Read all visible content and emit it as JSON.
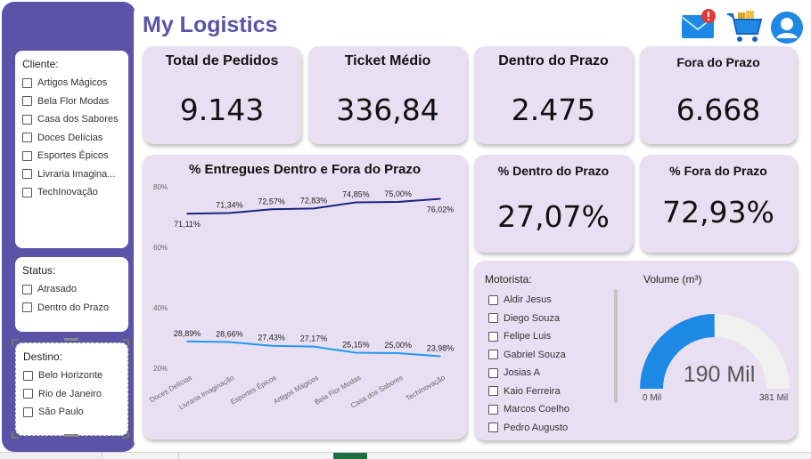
{
  "app": {
    "title": "My Logistics"
  },
  "header_icons": [
    "mail-alert-icon",
    "shopping-cart-icon",
    "user-avatar-icon"
  ],
  "colors": {
    "brand": "#5c52a8",
    "card": "#e8e0f2",
    "line_in": "#1a237e",
    "line_out": "#2196f3",
    "gauge_fill": "#1e88e5",
    "gauge_rest": "#f0f0f0"
  },
  "filters": {
    "cliente": {
      "title": "Cliente:",
      "items": [
        "Artigos Mágicos",
        "Bela Flor Modas",
        "Casa dos Sabores",
        "Doces Delícias",
        "Esportes Épicos",
        "Livraria Imagina...",
        "TechInovação"
      ]
    },
    "status": {
      "title": "Status:",
      "items": [
        "Atrasado",
        "Dentro do Prazo"
      ]
    },
    "destino": {
      "title": "Destino:",
      "items": [
        "Belo Horizonte",
        "Rio de Janeiro",
        "São Paulo"
      ]
    }
  },
  "kpis": {
    "total_pedidos": {
      "label": "Total de Pedidos",
      "value": "9.143"
    },
    "ticket_medio": {
      "label": "Ticket Médio",
      "value": "336,84"
    },
    "dentro_prazo": {
      "label": "Dentro do Prazo",
      "value": "2.475"
    },
    "fora_prazo": {
      "label": "Fora do  Prazo",
      "value": "6.668"
    },
    "pct_dentro": {
      "label": "% Dentro do Prazo",
      "value": "27,07%"
    },
    "pct_fora": {
      "label": "% Fora do  Prazo",
      "value": "72,93%"
    }
  },
  "motorista": {
    "title": "Motorista:",
    "items": [
      "Aldir Jesus",
      "Diego Souza",
      "Felipe Luis",
      "Gabriel Souza",
      "Josias A",
      "Kaio Ferreira",
      "Marcos Coelho",
      "Pedro Augusto"
    ]
  },
  "volume": {
    "title": "Volume (m³)",
    "value_label": "190 Mil",
    "min_label": "0 Mil",
    "max_label": "381 Mil",
    "fraction": 0.4987
  },
  "chart_data": {
    "type": "line",
    "title": "% Entregues Dentro e Fora do Prazo",
    "categories": [
      "Doces Delícias",
      "Livraria Imaginação",
      "Esportes Épicos",
      "Artigos Mágicos",
      "Bela Flor Modas",
      "Casa dos Sabores",
      "TechInovação"
    ],
    "series": [
      {
        "values": [
          71.11,
          71.34,
          72.57,
          72.83,
          74.85,
          75.0,
          76.02
        ],
        "labels": [
          "71,11%",
          "71,34%",
          "72,57%",
          "72,83%",
          "74,85%",
          "75,00%",
          "76,02%"
        ]
      },
      {
        "values": [
          28.89,
          28.66,
          27.43,
          27.17,
          25.15,
          25.0,
          23.98
        ],
        "labels": [
          "28,89%",
          "28,66%",
          "27,43%",
          "27,17%",
          "25,15%",
          "25,00%",
          "23,98%"
        ]
      }
    ],
    "yticks": [
      "80%",
      "60%",
      "40%",
      "20%"
    ],
    "ytick_values": [
      80,
      60,
      40,
      20
    ],
    "ylim": [
      20,
      80
    ],
    "grid": false,
    "legend": "none"
  }
}
